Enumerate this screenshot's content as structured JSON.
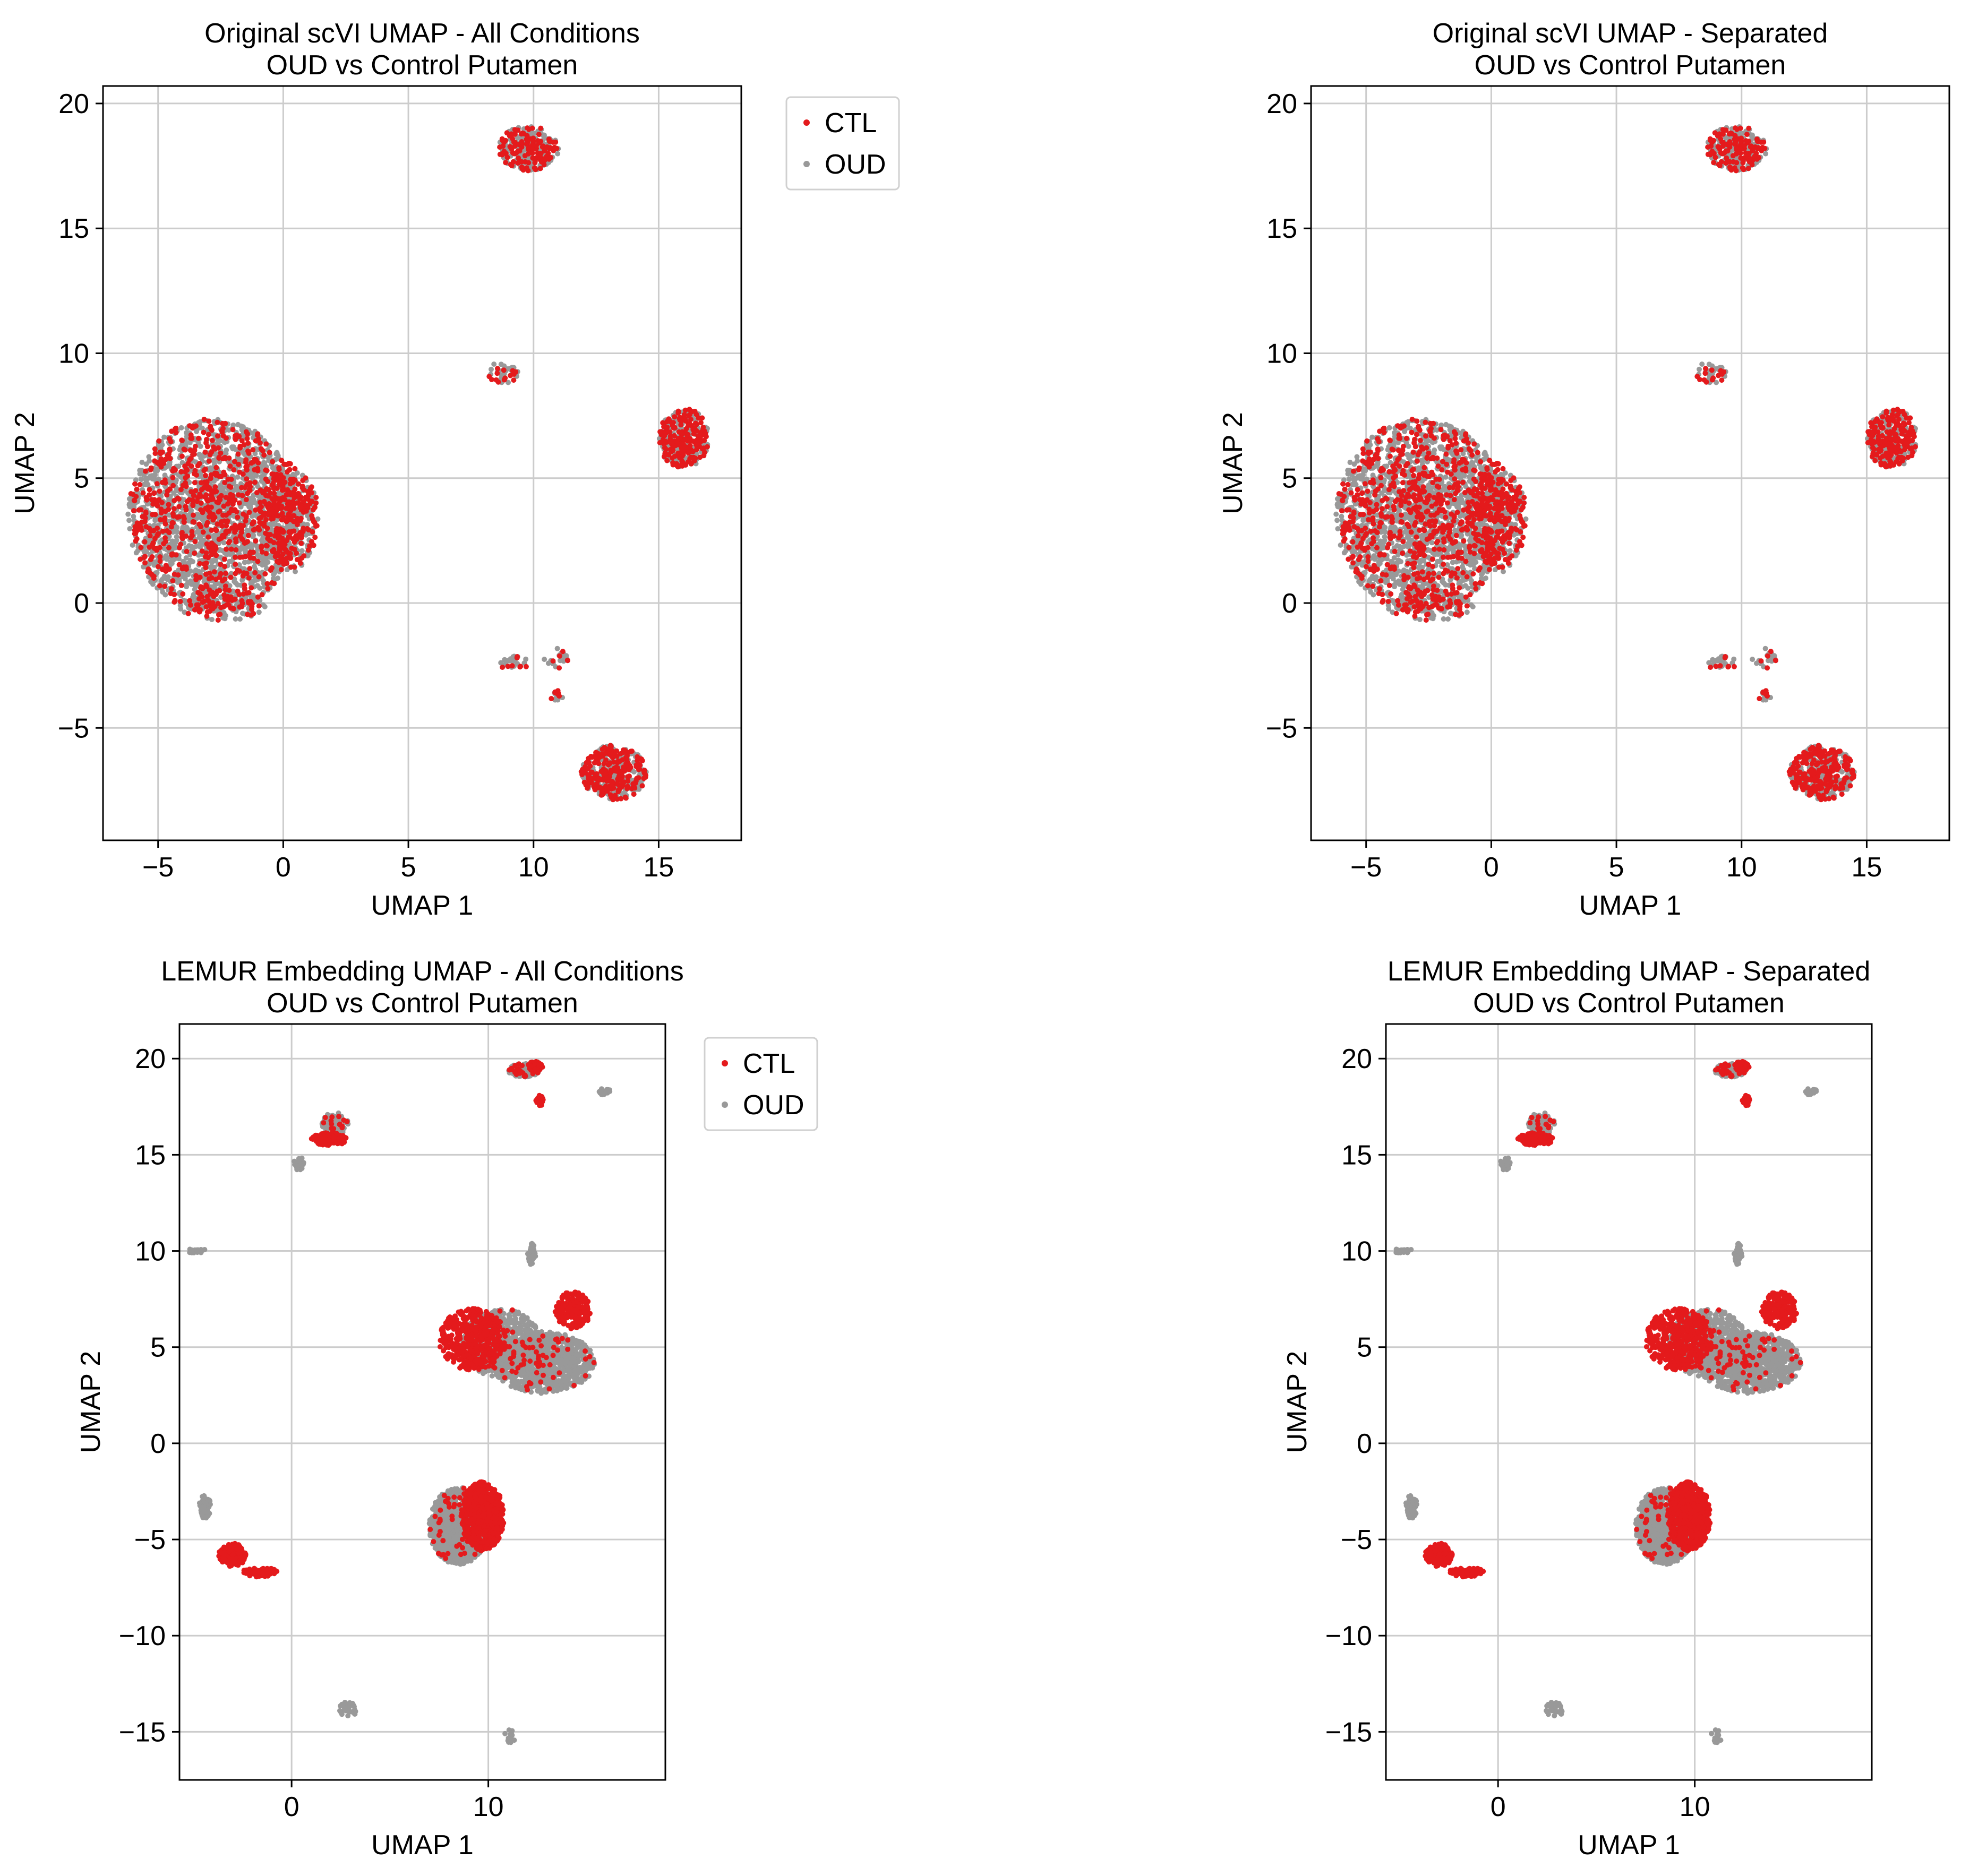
{
  "colors": {
    "CTL": "#e41a1c",
    "OUD": "#999999",
    "grid": "#cccccc",
    "axis": "#000000"
  },
  "chart_data": [
    {
      "type": "scatter",
      "title": [
        "Original scVI UMAP - All Conditions",
        "OUD vs Control Putamen"
      ],
      "xlabel": "UMAP 1",
      "ylabel": "UMAP 2",
      "xlim": [
        -7.2,
        18.3
      ],
      "ylim": [
        -9.5,
        20.7
      ],
      "xticks": [
        -5,
        0,
        5,
        10,
        15
      ],
      "yticks": [
        -5,
        0,
        5,
        10,
        15,
        20
      ],
      "grid": true,
      "legend": {
        "placement": "outside-right",
        "entries": [
          "CTL",
          "OUD"
        ]
      },
      "clusters": [
        {
          "cx": -2.8,
          "cy": 3.5,
          "rx": 3.4,
          "ry": 3.9,
          "n": 2300,
          "ctl": 0.3,
          "seed": 11
        },
        {
          "cx": 0.2,
          "cy": 3.4,
          "rx": 1.2,
          "ry": 2.2,
          "n": 500,
          "ctl": 0.45,
          "seed": 12
        },
        {
          "cx": -2.5,
          "cy": -0.1,
          "rx": 1.8,
          "ry": 0.6,
          "n": 120,
          "ctl": 0.3,
          "seed": 13
        },
        {
          "cx": 9.8,
          "cy": 18.2,
          "rx": 1.2,
          "ry": 0.9,
          "n": 280,
          "ctl": 0.45,
          "seed": 14
        },
        {
          "cx": 8.8,
          "cy": 9.2,
          "rx": 0.6,
          "ry": 0.5,
          "n": 40,
          "ctl": 0.35,
          "seed": 15
        },
        {
          "cx": 16.0,
          "cy": 6.6,
          "rx": 1.0,
          "ry": 1.2,
          "n": 320,
          "ctl": 0.55,
          "seed": 16
        },
        {
          "cx": 13.2,
          "cy": -6.8,
          "rx": 1.3,
          "ry": 1.1,
          "n": 450,
          "ctl": 0.5,
          "seed": 17
        },
        {
          "cx": 9.2,
          "cy": -2.4,
          "rx": 0.6,
          "ry": 0.3,
          "n": 25,
          "ctl": 0.5,
          "seed": 18
        },
        {
          "cx": 11.0,
          "cy": -2.2,
          "rx": 0.6,
          "ry": 0.4,
          "n": 25,
          "ctl": 0.4,
          "seed": 19
        },
        {
          "cx": 10.9,
          "cy": -3.7,
          "rx": 0.3,
          "ry": 0.2,
          "n": 15,
          "ctl": 0.4,
          "seed": 20
        }
      ]
    },
    {
      "type": "scatter",
      "title": [
        "Original scVI UMAP - Separated",
        "OUD vs Control Putamen"
      ],
      "xlabel": "UMAP 1",
      "ylabel": "UMAP 2",
      "xlim": [
        -7.2,
        18.3
      ],
      "ylim": [
        -9.5,
        20.7
      ],
      "xticks": [
        -5,
        0,
        5,
        10,
        15
      ],
      "yticks": [
        -5,
        0,
        5,
        10,
        15,
        20
      ],
      "grid": true,
      "legend": null,
      "clusters": [
        {
          "cx": -2.8,
          "cy": 3.5,
          "rx": 3.4,
          "ry": 3.9,
          "n": 2300,
          "ctl": 0.3,
          "seed": 11
        },
        {
          "cx": 0.2,
          "cy": 3.4,
          "rx": 1.2,
          "ry": 2.2,
          "n": 500,
          "ctl": 0.45,
          "seed": 12
        },
        {
          "cx": -2.5,
          "cy": -0.1,
          "rx": 1.8,
          "ry": 0.6,
          "n": 120,
          "ctl": 0.3,
          "seed": 13
        },
        {
          "cx": 9.8,
          "cy": 18.2,
          "rx": 1.2,
          "ry": 0.9,
          "n": 280,
          "ctl": 0.45,
          "seed": 14
        },
        {
          "cx": 8.8,
          "cy": 9.2,
          "rx": 0.6,
          "ry": 0.5,
          "n": 40,
          "ctl": 0.35,
          "seed": 15
        },
        {
          "cx": 16.0,
          "cy": 6.6,
          "rx": 1.0,
          "ry": 1.2,
          "n": 320,
          "ctl": 0.55,
          "seed": 16
        },
        {
          "cx": 13.2,
          "cy": -6.8,
          "rx": 1.3,
          "ry": 1.1,
          "n": 450,
          "ctl": 0.5,
          "seed": 17
        },
        {
          "cx": 9.2,
          "cy": -2.4,
          "rx": 0.6,
          "ry": 0.3,
          "n": 25,
          "ctl": 0.5,
          "seed": 18
        },
        {
          "cx": 11.0,
          "cy": -2.2,
          "rx": 0.6,
          "ry": 0.4,
          "n": 25,
          "ctl": 0.4,
          "seed": 19
        },
        {
          "cx": 10.9,
          "cy": -3.7,
          "rx": 0.3,
          "ry": 0.2,
          "n": 15,
          "ctl": 0.4,
          "seed": 20
        }
      ]
    },
    {
      "type": "scatter",
      "title": [
        "LEMUR Embedding UMAP - All Conditions",
        "OUD vs Control Putamen"
      ],
      "xlabel": "UMAP 1",
      "ylabel": "UMAP 2",
      "xlim": [
        -5.7,
        19.0
      ],
      "ylim": [
        -17.5,
        21.8
      ],
      "xticks": [
        0,
        10
      ],
      "yticks": [
        -15,
        -10,
        -5,
        0,
        5,
        10,
        15,
        20
      ],
      "grid": true,
      "legend": {
        "placement": "outside-right",
        "entries": [
          "CTL",
          "OUD"
        ]
      },
      "clusters": [
        {
          "cx": 12.8,
          "cy": 4.2,
          "rx": 2.6,
          "ry": 1.6,
          "n": 900,
          "ctl": 0.08,
          "seed": 31
        },
        {
          "cx": 10.7,
          "cy": 5.2,
          "rx": 2.0,
          "ry": 1.8,
          "n": 600,
          "ctl": 0.05,
          "seed": 32
        },
        {
          "cx": 9.2,
          "cy": 5.4,
          "rx": 1.7,
          "ry": 1.6,
          "n": 420,
          "ctl": 1.0,
          "seed": 33
        },
        {
          "cx": 14.3,
          "cy": 6.9,
          "rx": 0.9,
          "ry": 1.0,
          "n": 200,
          "ctl": 1.0,
          "seed": 34
        },
        {
          "cx": 8.5,
          "cy": -4.3,
          "rx": 1.5,
          "ry": 2.0,
          "n": 900,
          "ctl": 0.05,
          "seed": 35
        },
        {
          "cx": 9.7,
          "cy": -3.8,
          "rx": 1.1,
          "ry": 1.8,
          "n": 700,
          "ctl": 1.0,
          "seed": 36
        },
        {
          "cx": -3.0,
          "cy": -5.8,
          "rx": 0.7,
          "ry": 0.6,
          "n": 150,
          "ctl": 1.0,
          "seed": 37
        },
        {
          "cx": -1.6,
          "cy": -6.7,
          "rx": 0.9,
          "ry": 0.25,
          "n": 70,
          "ctl": 1.0,
          "seed": 38
        },
        {
          "cx": -4.4,
          "cy": -3.3,
          "rx": 0.3,
          "ry": 0.6,
          "n": 60,
          "ctl": 0.0,
          "seed": 39
        },
        {
          "cx": 1.9,
          "cy": 15.8,
          "rx": 0.9,
          "ry": 0.35,
          "n": 120,
          "ctl": 1.0,
          "seed": 40
        },
        {
          "cx": 2.2,
          "cy": 16.6,
          "rx": 0.7,
          "ry": 0.6,
          "n": 80,
          "ctl": 0.2,
          "seed": 41
        },
        {
          "cx": 0.4,
          "cy": 14.5,
          "rx": 0.3,
          "ry": 0.4,
          "n": 20,
          "ctl": 0.0,
          "seed": 42
        },
        {
          "cx": 11.8,
          "cy": 19.4,
          "rx": 0.8,
          "ry": 0.35,
          "n": 120,
          "ctl": 0.2,
          "seed": 43
        },
        {
          "cx": 12.4,
          "cy": 19.6,
          "rx": 0.4,
          "ry": 0.25,
          "n": 50,
          "ctl": 1.0,
          "seed": 44
        },
        {
          "cx": 12.6,
          "cy": 17.8,
          "rx": 0.2,
          "ry": 0.3,
          "n": 20,
          "ctl": 1.0,
          "seed": 45
        },
        {
          "cx": 15.9,
          "cy": 18.3,
          "rx": 0.3,
          "ry": 0.2,
          "n": 20,
          "ctl": 0.0,
          "seed": 46
        },
        {
          "cx": 12.2,
          "cy": 9.8,
          "rx": 0.2,
          "ry": 0.6,
          "n": 50,
          "ctl": 0.0,
          "seed": 47
        },
        {
          "cx": -4.8,
          "cy": 10.0,
          "rx": 0.5,
          "ry": 0.15,
          "n": 20,
          "ctl": 0.0,
          "seed": 48
        },
        {
          "cx": 2.9,
          "cy": -13.8,
          "rx": 0.5,
          "ry": 0.4,
          "n": 30,
          "ctl": 0.0,
          "seed": 49
        },
        {
          "cx": 11.1,
          "cy": -15.3,
          "rx": 0.3,
          "ry": 0.4,
          "n": 15,
          "ctl": 0.0,
          "seed": 50
        }
      ]
    },
    {
      "type": "scatter",
      "title": [
        "LEMUR Embedding UMAP - Separated",
        "OUD vs Control Putamen"
      ],
      "xlabel": "UMAP 1",
      "ylabel": "UMAP 2",
      "xlim": [
        -5.7,
        19.0
      ],
      "ylim": [
        -17.5,
        21.8
      ],
      "xticks": [
        0,
        10
      ],
      "yticks": [
        -15,
        -10,
        -5,
        0,
        5,
        10,
        15,
        20
      ],
      "grid": true,
      "legend": null,
      "clusters": [
        {
          "cx": 12.8,
          "cy": 4.2,
          "rx": 2.6,
          "ry": 1.6,
          "n": 900,
          "ctl": 0.08,
          "seed": 31
        },
        {
          "cx": 10.7,
          "cy": 5.2,
          "rx": 2.0,
          "ry": 1.8,
          "n": 600,
          "ctl": 0.05,
          "seed": 32
        },
        {
          "cx": 9.2,
          "cy": 5.4,
          "rx": 1.7,
          "ry": 1.6,
          "n": 420,
          "ctl": 1.0,
          "seed": 33
        },
        {
          "cx": 14.3,
          "cy": 6.9,
          "rx": 0.9,
          "ry": 1.0,
          "n": 200,
          "ctl": 1.0,
          "seed": 34
        },
        {
          "cx": 8.5,
          "cy": -4.3,
          "rx": 1.5,
          "ry": 2.0,
          "n": 900,
          "ctl": 0.05,
          "seed": 35
        },
        {
          "cx": 9.7,
          "cy": -3.8,
          "rx": 1.1,
          "ry": 1.8,
          "n": 700,
          "ctl": 1.0,
          "seed": 36
        },
        {
          "cx": -3.0,
          "cy": -5.8,
          "rx": 0.7,
          "ry": 0.6,
          "n": 150,
          "ctl": 1.0,
          "seed": 37
        },
        {
          "cx": -1.6,
          "cy": -6.7,
          "rx": 0.9,
          "ry": 0.25,
          "n": 70,
          "ctl": 1.0,
          "seed": 38
        },
        {
          "cx": -4.4,
          "cy": -3.3,
          "rx": 0.3,
          "ry": 0.6,
          "n": 60,
          "ctl": 0.0,
          "seed": 39
        },
        {
          "cx": 1.9,
          "cy": 15.8,
          "rx": 0.9,
          "ry": 0.35,
          "n": 120,
          "ctl": 1.0,
          "seed": 40
        },
        {
          "cx": 2.2,
          "cy": 16.6,
          "rx": 0.7,
          "ry": 0.6,
          "n": 80,
          "ctl": 0.2,
          "seed": 41
        },
        {
          "cx": 0.4,
          "cy": 14.5,
          "rx": 0.3,
          "ry": 0.4,
          "n": 20,
          "ctl": 0.0,
          "seed": 42
        },
        {
          "cx": 11.8,
          "cy": 19.4,
          "rx": 0.8,
          "ry": 0.35,
          "n": 120,
          "ctl": 0.2,
          "seed": 43
        },
        {
          "cx": 12.4,
          "cy": 19.6,
          "rx": 0.4,
          "ry": 0.25,
          "n": 50,
          "ctl": 1.0,
          "seed": 44
        },
        {
          "cx": 12.6,
          "cy": 17.8,
          "rx": 0.2,
          "ry": 0.3,
          "n": 20,
          "ctl": 1.0,
          "seed": 45
        },
        {
          "cx": 15.9,
          "cy": 18.3,
          "rx": 0.3,
          "ry": 0.2,
          "n": 20,
          "ctl": 0.0,
          "seed": 46
        },
        {
          "cx": 12.2,
          "cy": 9.8,
          "rx": 0.2,
          "ry": 0.6,
          "n": 50,
          "ctl": 0.0,
          "seed": 47
        },
        {
          "cx": -4.8,
          "cy": 10.0,
          "rx": 0.5,
          "ry": 0.15,
          "n": 20,
          "ctl": 0.0,
          "seed": 48
        },
        {
          "cx": 2.9,
          "cy": -13.8,
          "rx": 0.5,
          "ry": 0.4,
          "n": 30,
          "ctl": 0.0,
          "seed": 49
        },
        {
          "cx": 11.1,
          "cy": -15.3,
          "rx": 0.3,
          "ry": 0.4,
          "n": 15,
          "ctl": 0.0,
          "seed": 50
        }
      ]
    }
  ]
}
